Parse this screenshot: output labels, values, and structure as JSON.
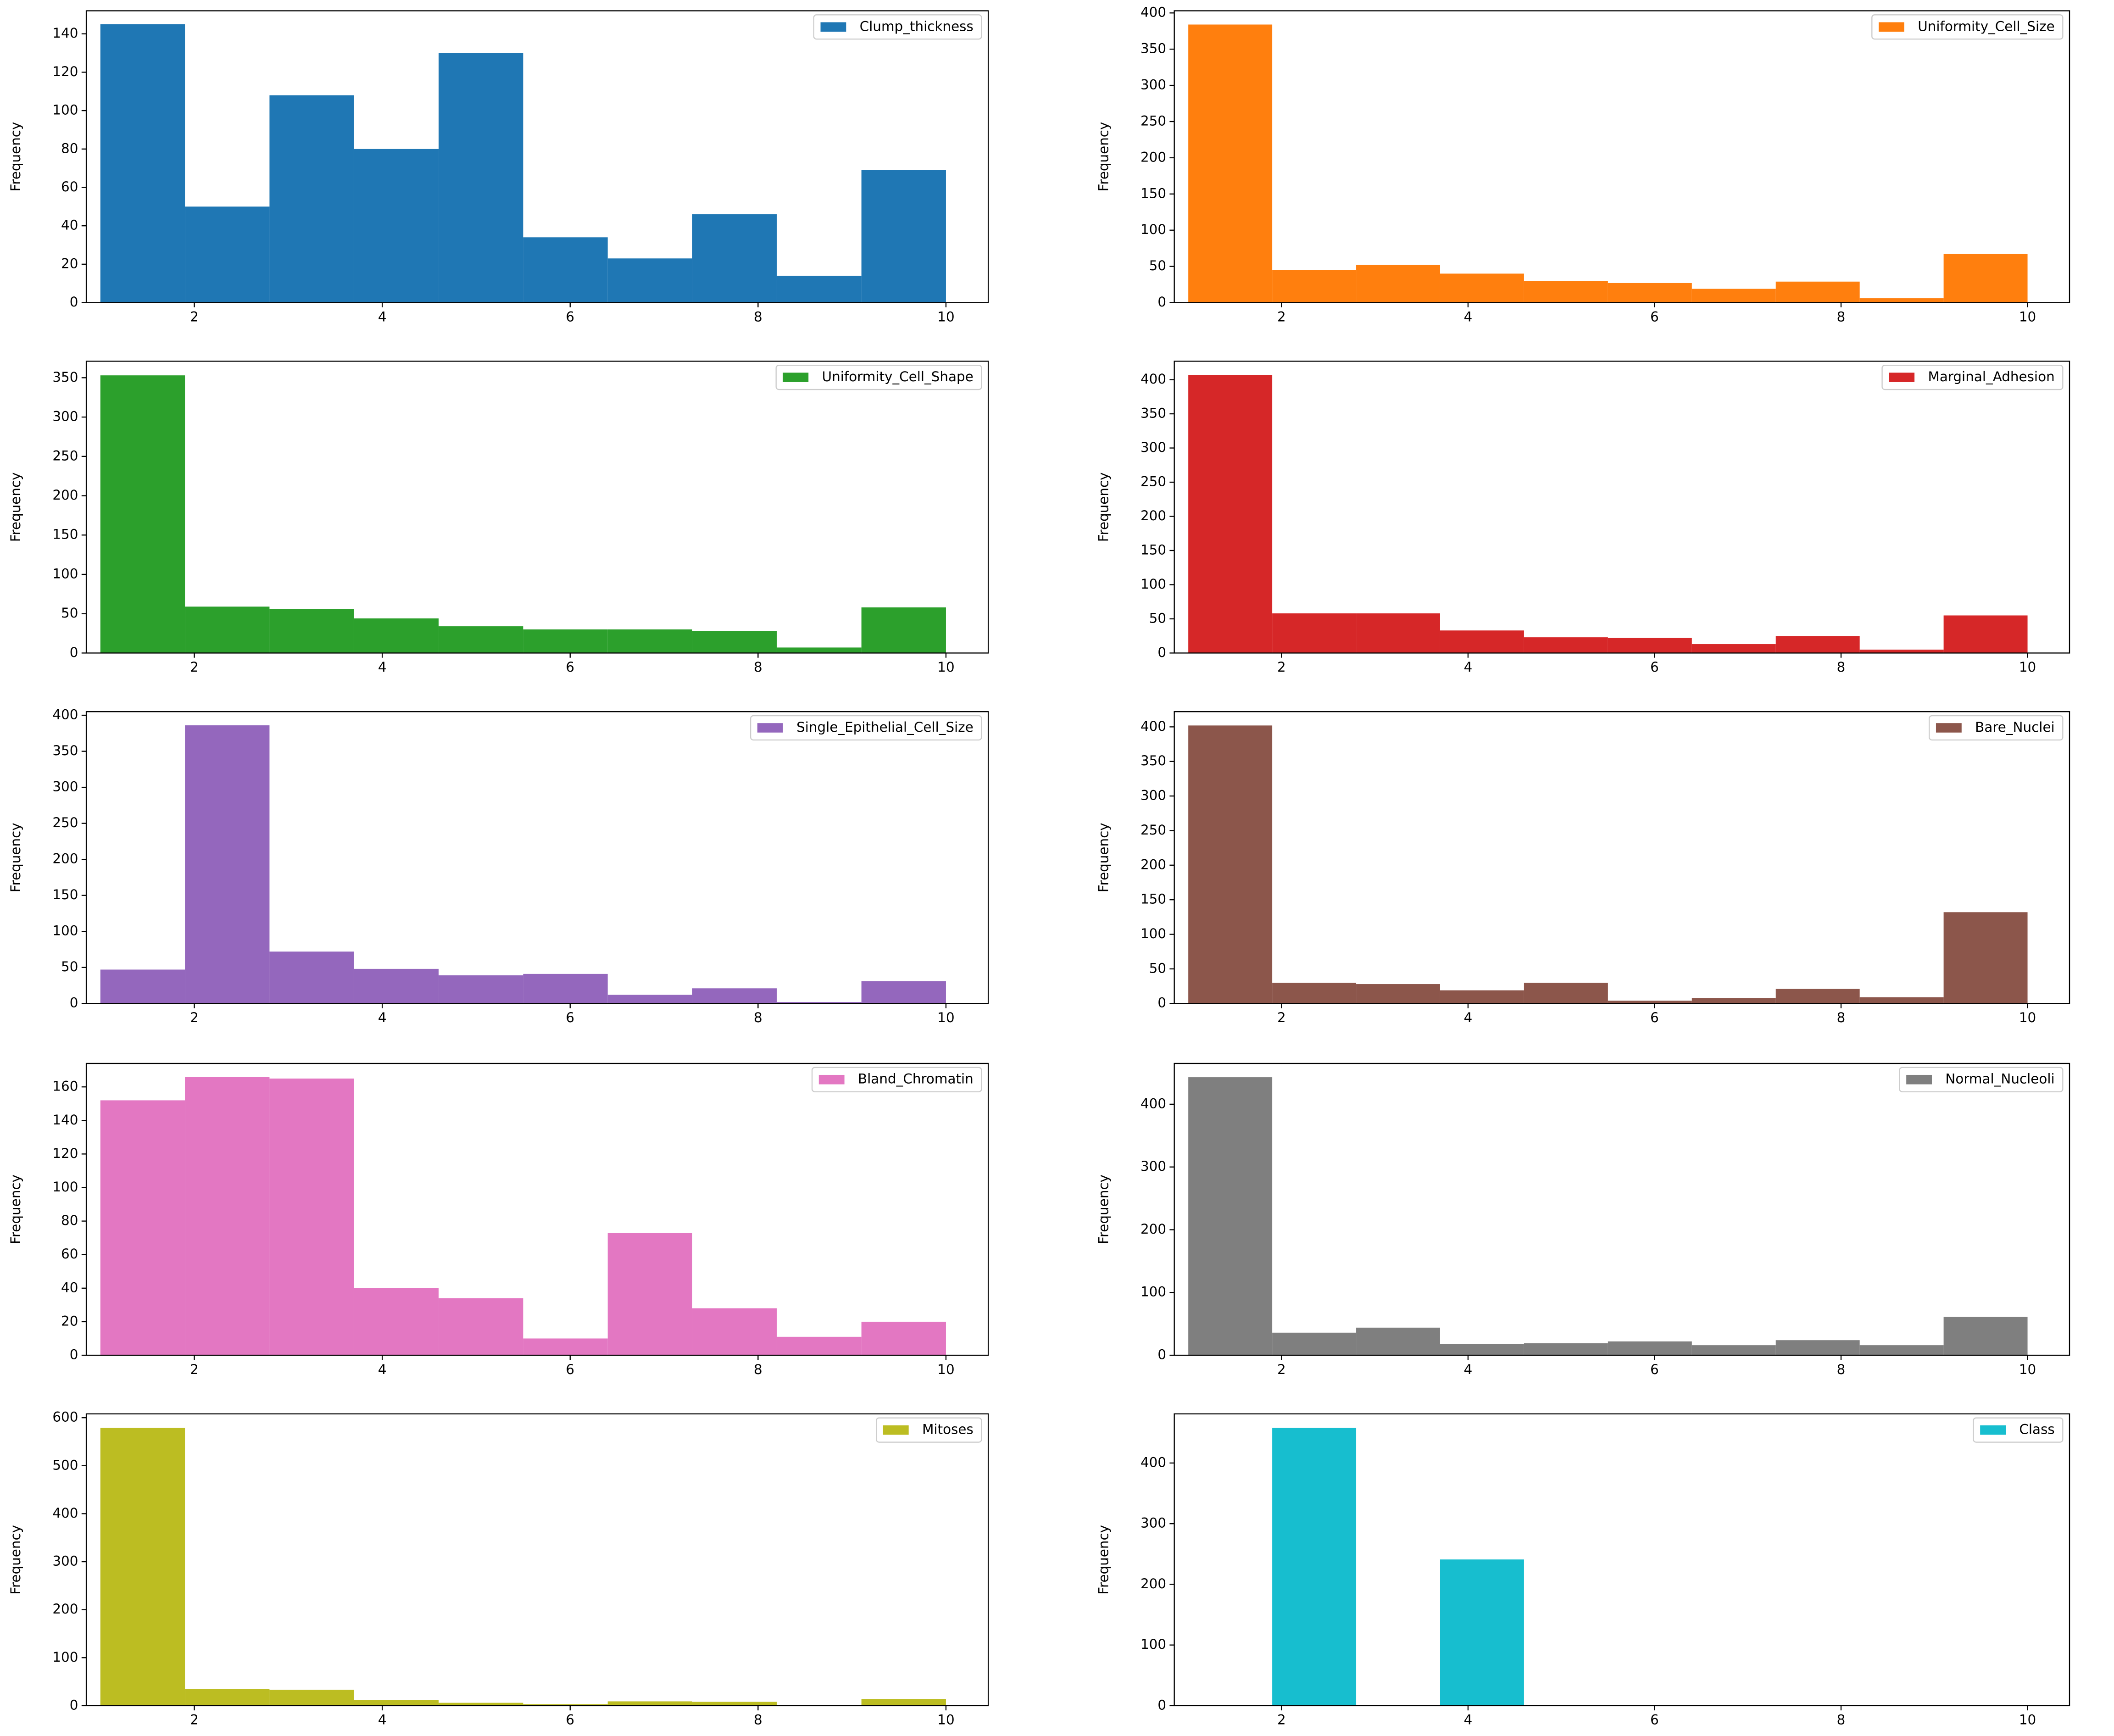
{
  "chart_data": [
    {
      "type": "histogram",
      "ylabel": "Frequency",
      "bins": [
        1,
        1.9,
        2.8,
        3.7,
        4.6,
        5.5,
        6.4,
        7.3,
        8.2,
        9.1,
        10
      ],
      "series": [
        {
          "name": "Clump_thickness",
          "color": "#1f77b4",
          "values": [
            145,
            50,
            108,
            80,
            130,
            34,
            23,
            46,
            14,
            69
          ]
        }
      ],
      "xlim": [
        0.85,
        10.45
      ],
      "xticks": [
        2,
        4,
        6,
        8,
        10
      ],
      "ylim": [
        0,
        152
      ],
      "yticks": [
        0,
        20,
        40,
        60,
        80,
        100,
        120,
        140
      ],
      "legend": "upper right"
    },
    {
      "type": "histogram",
      "ylabel": "Frequency",
      "bins": [
        1,
        1.9,
        2.8,
        3.7,
        4.6,
        5.5,
        6.4,
        7.3,
        8.2,
        9.1,
        10
      ],
      "series": [
        {
          "name": "Uniformity_Cell_Size",
          "color": "#ff7f0e",
          "values": [
            384,
            45,
            52,
            40,
            30,
            27,
            19,
            29,
            6,
            67
          ]
        }
      ],
      "xlim": [
        0.85,
        10.45
      ],
      "xticks": [
        2,
        4,
        6,
        8,
        10
      ],
      "ylim": [
        0,
        403
      ],
      "yticks": [
        0,
        50,
        100,
        150,
        200,
        250,
        300,
        350,
        400
      ],
      "legend": "upper right"
    },
    {
      "type": "histogram",
      "ylabel": "Frequency",
      "bins": [
        1,
        1.9,
        2.8,
        3.7,
        4.6,
        5.5,
        6.4,
        7.3,
        8.2,
        9.1,
        10
      ],
      "series": [
        {
          "name": "Uniformity_Cell_Shape",
          "color": "#2ca02c",
          "values": [
            353,
            59,
            56,
            44,
            34,
            30,
            30,
            28,
            7,
            58
          ]
        }
      ],
      "xlim": [
        0.85,
        10.45
      ],
      "xticks": [
        2,
        4,
        6,
        8,
        10
      ],
      "ylim": [
        0,
        371
      ],
      "yticks": [
        0,
        50,
        100,
        150,
        200,
        250,
        300,
        350
      ],
      "legend": "upper right"
    },
    {
      "type": "histogram",
      "ylabel": "Frequency",
      "bins": [
        1,
        1.9,
        2.8,
        3.7,
        4.6,
        5.5,
        6.4,
        7.3,
        8.2,
        9.1,
        10
      ],
      "series": [
        {
          "name": "Marginal_Adhesion",
          "color": "#d62728",
          "values": [
            407,
            58,
            58,
            33,
            23,
            22,
            13,
            25,
            5,
            55
          ]
        }
      ],
      "xlim": [
        0.85,
        10.45
      ],
      "xticks": [
        2,
        4,
        6,
        8,
        10
      ],
      "ylim": [
        0,
        427
      ],
      "yticks": [
        0,
        50,
        100,
        150,
        200,
        250,
        300,
        350,
        400
      ],
      "legend": "upper right"
    },
    {
      "type": "histogram",
      "ylabel": "Frequency",
      "bins": [
        1,
        1.9,
        2.8,
        3.7,
        4.6,
        5.5,
        6.4,
        7.3,
        8.2,
        9.1,
        10
      ],
      "series": [
        {
          "name": "Single_Epithelial_Cell_Size",
          "color": "#9467bd",
          "values": [
            47,
            386,
            72,
            48,
            39,
            41,
            12,
            21,
            2,
            31
          ]
        }
      ],
      "xlim": [
        0.85,
        10.45
      ],
      "xticks": [
        2,
        4,
        6,
        8,
        10
      ],
      "ylim": [
        0,
        405
      ],
      "yticks": [
        0,
        50,
        100,
        150,
        200,
        250,
        300,
        350,
        400
      ],
      "legend": "upper right"
    },
    {
      "type": "histogram",
      "ylabel": "Frequency",
      "bins": [
        1,
        1.9,
        2.8,
        3.7,
        4.6,
        5.5,
        6.4,
        7.3,
        8.2,
        9.1,
        10
      ],
      "series": [
        {
          "name": "Bare_Nuclei",
          "color": "#8c564b",
          "values": [
            402,
            30,
            28,
            19,
            30,
            4,
            8,
            21,
            9,
            132
          ]
        }
      ],
      "xlim": [
        0.85,
        10.45
      ],
      "xticks": [
        2,
        4,
        6,
        8,
        10
      ],
      "ylim": [
        0,
        422
      ],
      "yticks": [
        0,
        50,
        100,
        150,
        200,
        250,
        300,
        350,
        400
      ],
      "legend": "upper right"
    },
    {
      "type": "histogram",
      "ylabel": "Frequency",
      "bins": [
        1,
        1.9,
        2.8,
        3.7,
        4.6,
        5.5,
        6.4,
        7.3,
        8.2,
        9.1,
        10
      ],
      "series": [
        {
          "name": "Bland_Chromatin",
          "color": "#e377c2",
          "values": [
            152,
            166,
            165,
            40,
            34,
            10,
            73,
            28,
            11,
            20
          ]
        }
      ],
      "xlim": [
        0.85,
        10.45
      ],
      "xticks": [
        2,
        4,
        6,
        8,
        10
      ],
      "ylim": [
        0,
        174
      ],
      "yticks": [
        0,
        20,
        40,
        60,
        80,
        100,
        120,
        140,
        160
      ],
      "legend": "upper right"
    },
    {
      "type": "histogram",
      "ylabel": "Frequency",
      "bins": [
        1,
        1.9,
        2.8,
        3.7,
        4.6,
        5.5,
        6.4,
        7.3,
        8.2,
        9.1,
        10
      ],
      "series": [
        {
          "name": "Normal_Nucleoli",
          "color": "#7f7f7f",
          "values": [
            443,
            36,
            44,
            18,
            19,
            22,
            16,
            24,
            16,
            61
          ]
        }
      ],
      "xlim": [
        0.85,
        10.45
      ],
      "xticks": [
        2,
        4,
        6,
        8,
        10
      ],
      "ylim": [
        0,
        465
      ],
      "yticks": [
        0,
        100,
        200,
        300,
        400
      ],
      "legend": "upper right"
    },
    {
      "type": "histogram",
      "ylabel": "Frequency",
      "bins": [
        1,
        1.9,
        2.8,
        3.7,
        4.6,
        5.5,
        6.4,
        7.3,
        8.2,
        9.1,
        10
      ],
      "series": [
        {
          "name": "Mitoses",
          "color": "#bcbd22",
          "values": [
            579,
            35,
            33,
            12,
            6,
            3,
            9,
            8,
            0,
            14
          ]
        }
      ],
      "xlim": [
        0.85,
        10.45
      ],
      "xticks": [
        2,
        4,
        6,
        8,
        10
      ],
      "ylim": [
        0,
        608
      ],
      "yticks": [
        0,
        100,
        200,
        300,
        400,
        500,
        600
      ],
      "legend": "upper right"
    },
    {
      "type": "histogram",
      "ylabel": "Frequency",
      "bins": [
        1,
        1.9,
        2.8,
        3.7,
        4.6,
        5.5,
        6.4,
        7.3,
        8.2,
        9.1,
        10
      ],
      "series": [
        {
          "name": "Class",
          "color": "#17becf",
          "values": [
            0,
            458,
            0,
            241,
            0,
            0,
            0,
            0,
            0,
            0
          ]
        }
      ],
      "xlim": [
        0.85,
        10.45
      ],
      "xticks": [
        2,
        4,
        6,
        8,
        10
      ],
      "ylim": [
        0,
        481
      ],
      "yticks": [
        0,
        100,
        200,
        300,
        400
      ],
      "legend": "upper right"
    }
  ]
}
